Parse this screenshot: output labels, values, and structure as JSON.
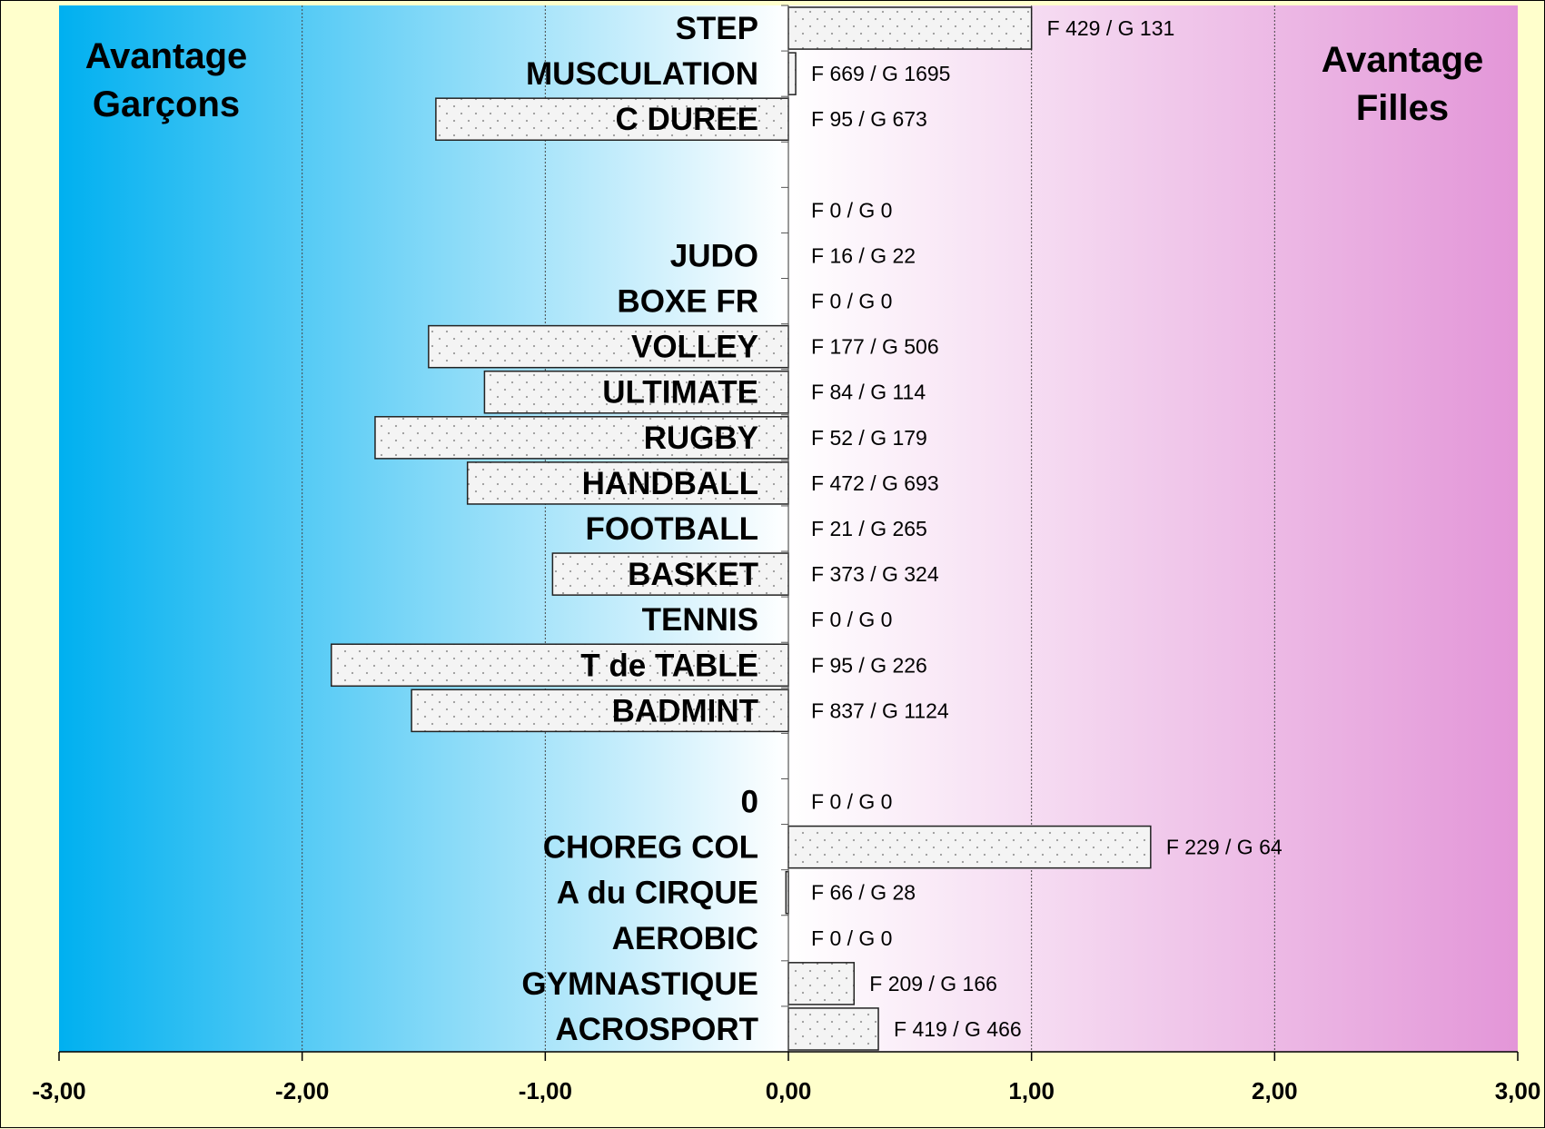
{
  "chart_data": {
    "type": "bar",
    "orientation": "horizontal",
    "xlim": [
      -3,
      3
    ],
    "x_ticks": [
      -3,
      -2,
      -1,
      0,
      1,
      2,
      3
    ],
    "x_tick_labels": [
      "-3,00",
      "-2,00",
      "-1,00",
      "0,00",
      "1,00",
      "2,00",
      "3,00"
    ],
    "grid": "vertical gridlines at integer ticks",
    "background_gradient": [
      "#00b0f0",
      "#ffffff",
      "#e396d8"
    ],
    "bar_fill": "dotted pattern, light gray",
    "side_labels": {
      "left": [
        "Avantage",
        "Garçons"
      ],
      "right": [
        "Avantage",
        "Filles"
      ]
    },
    "categories": [
      "STEP",
      "MUSCULATION",
      "C   DUREE",
      "",
      "",
      "JUDO",
      "BOXE FR",
      "VOLLEY",
      "ULTIMATE",
      "RUGBY",
      "HANDBALL",
      "FOOTBALL",
      "BASKET",
      "TENNIS",
      "T  de TABLE",
      "BADMINT",
      "",
      "0",
      "CHOREG  COL",
      "A du CIRQUE",
      "AEROBIC",
      "GYMNASTIQUE",
      "ACROSPORT"
    ],
    "values": [
      1.0,
      0.03,
      -1.45,
      null,
      0,
      0,
      0,
      -1.48,
      -1.25,
      -1.7,
      -1.32,
      0,
      -0.97,
      0,
      -1.88,
      -1.55,
      null,
      0,
      1.49,
      -0.01,
      0,
      0.27,
      0.37
    ],
    "data_labels": [
      "F 429 / G 131",
      "F 669 / G 1695",
      "F 95 / G 673",
      "",
      "F 0 / G 0",
      "F 16 / G 22",
      "F 0 / G 0",
      "F 177 / G 506",
      "F 84 / G 114",
      "F 52 / G 179",
      "F 472 / G 693",
      "F 21 / G 265",
      "F 373 / G 324",
      "F 0 / G 0",
      "F 95 / G 226",
      "F 837 / G 1124",
      "",
      "F 0 / G 0",
      "F 229 / G 64",
      "F 66 / G 28",
      "F 0 / G 0",
      "F 209 / G 166",
      "F 419 / G 466"
    ]
  }
}
